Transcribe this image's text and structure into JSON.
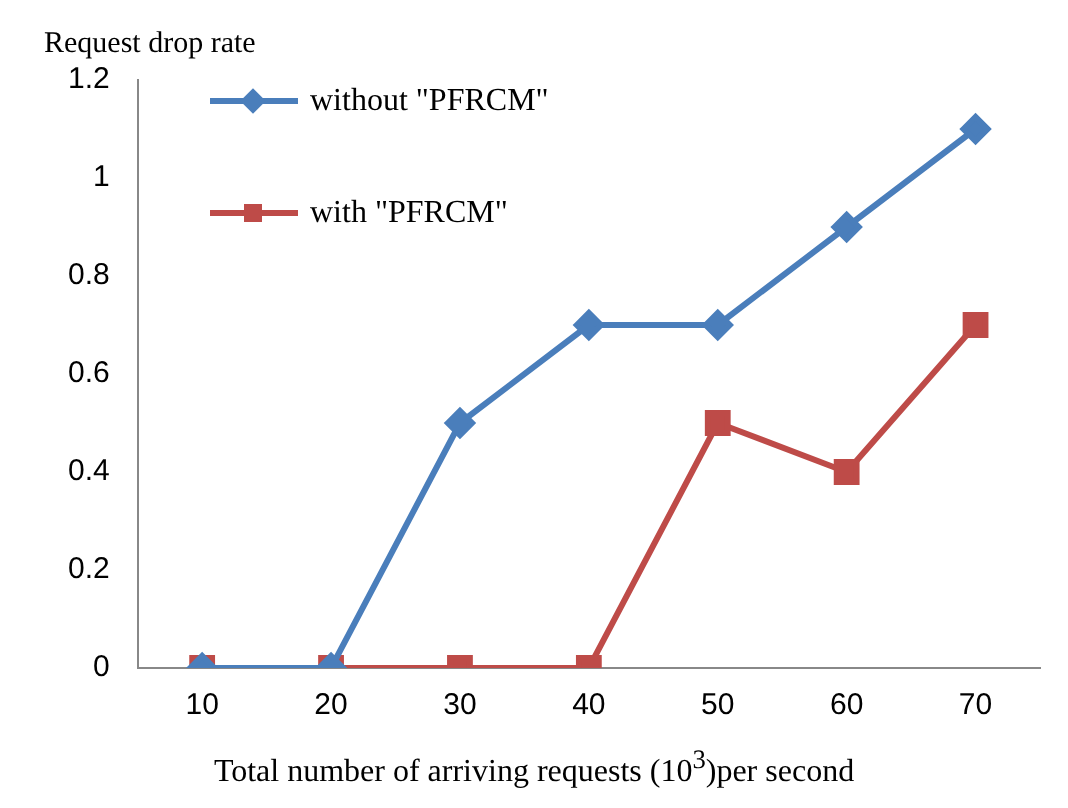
{
  "chart_data": {
    "type": "line",
    "ylabel": "Request drop rate",
    "xlabel": "Total number of arriving requests (10$^{3}$)per second",
    "categories": [
      "10",
      "20",
      "30",
      "40",
      "50",
      "60",
      "70"
    ],
    "series": [
      {
        "name": "without \"PFRCM\"",
        "color": "#4a7ebb",
        "marker": "diamond",
        "values": [
          0,
          0,
          0.5,
          0.7,
          0.7,
          0.9,
          1.1
        ]
      },
      {
        "name": "with \"PFRCM\"",
        "color": "#be4b48",
        "marker": "square",
        "values": [
          0,
          0,
          0,
          0,
          0.5,
          0.4,
          0.7
        ]
      }
    ],
    "ylim": [
      0,
      1.2
    ],
    "yticks": [
      0,
      0.2,
      0.4,
      0.6,
      0.8,
      1,
      1.2
    ],
    "grid": false,
    "legend": "top left"
  }
}
